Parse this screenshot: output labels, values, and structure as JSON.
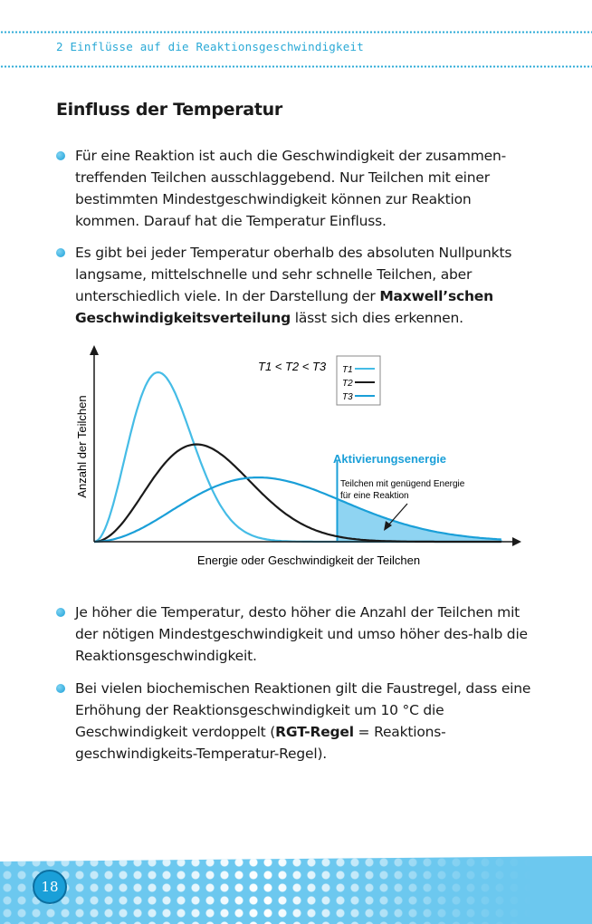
{
  "running_head": "2 Einflüsse auf die Reaktionsgeschwindigkeit",
  "heading": "Einfluss der Temperatur",
  "bullets": [
    {
      "text": "Für eine Reaktion ist auch die Geschwindigkeit der zusammen-treffenden Teilchen ausschlaggebend. Nur Teilchen mit einer bestimmten Mindestgeschwindigkeit können zur Reaktion kommen. Darauf hat die Temperatur Einfluss."
    },
    {
      "pre": "Es gibt bei jeder Temperatur oberhalb des absoluten Nullpunkts langsame, mittelschnelle und sehr schnelle Teilchen, aber unterschiedlich viele. In der Darstellung der ",
      "bold": "Maxwell’schen Geschwindigkeitsverteilung",
      "post": " lässt sich dies erkennen."
    },
    {
      "text": "Je höher die Temperatur, desto höher die Anzahl der Teilchen mit der nötigen Mindestgeschwindigkeit und umso höher des-halb die Reaktionsgeschwindigkeit."
    },
    {
      "pre": "Bei vielen biochemischen Reaktionen gilt die Faustregel, dass eine Erhöhung der Reaktionsgeschwindigkeit um 10 °C die Geschwindigkeit verdoppelt (",
      "bold": "RGT-Regel",
      "post": " = Reaktions-geschwindigkeits-Temperatur-Regel)."
    }
  ],
  "chart_data": {
    "type": "line",
    "xlabel": "Energie oder Geschwindigkeit der Teilchen",
    "ylabel": "Anzahl der Teilchen",
    "relation": "T1 < T2 < T3",
    "grid": false,
    "legend_placement": "top-right",
    "series": [
      {
        "name": "T1",
        "color": "#45bce6",
        "peak_x": 1.5,
        "peak_y": 8.7
      },
      {
        "name": "T2",
        "color": "#1a1a1a",
        "peak_x": 2.4,
        "peak_y": 5.0
      },
      {
        "name": "T3",
        "color": "#1a9fd8",
        "peak_x": 3.85,
        "peak_y": 3.3
      }
    ],
    "xlim": [
      0,
      10
    ],
    "ylim": [
      0,
      10
    ],
    "activation": {
      "x": 5.7,
      "label": "Aktivierungsenergie",
      "annotation_line1": "Teilchen mit genügend Energie",
      "annotation_line2": "für eine Reaktion",
      "shade_series": "T3"
    }
  },
  "page_number": "18",
  "colors": {
    "accent": "#2aa9d6",
    "footer": "#6cc8ef",
    "shade": "#8fd4f2"
  }
}
